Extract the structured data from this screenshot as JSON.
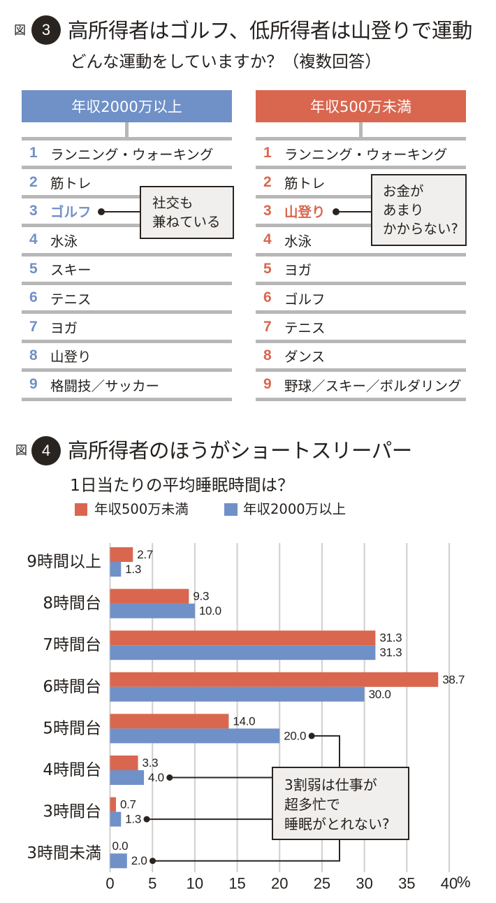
{
  "figure3": {
    "fig_label": "図",
    "fig_number": "3",
    "title": "高所得者はゴルフ、低所得者は山登りで運動",
    "subtitle": "どんな運動をしていますか？（複数回答）",
    "high_income": {
      "header": "年収2000万以上",
      "color": "#7090c8",
      "items": [
        {
          "rank": "1",
          "label": "ランニング・ウォーキング"
        },
        {
          "rank": "2",
          "label": "筋トレ"
        },
        {
          "rank": "3",
          "label": "ゴルフ",
          "highlight": true
        },
        {
          "rank": "4",
          "label": "水泳"
        },
        {
          "rank": "5",
          "label": "スキー"
        },
        {
          "rank": "6",
          "label": "テニス"
        },
        {
          "rank": "7",
          "label": "ヨガ"
        },
        {
          "rank": "8",
          "label": "山登り"
        },
        {
          "rank": "9",
          "label": "格闘技／サッカー"
        }
      ],
      "callout": [
        "社交も",
        "兼ねている"
      ]
    },
    "low_income": {
      "header": "年収500万未満",
      "color": "#d9674f",
      "items": [
        {
          "rank": "1",
          "label": "ランニング・ウォーキング"
        },
        {
          "rank": "2",
          "label": "筋トレ"
        },
        {
          "rank": "3",
          "label": "山登り",
          "highlight": true
        },
        {
          "rank": "4",
          "label": "水泳"
        },
        {
          "rank": "5",
          "label": "ヨガ"
        },
        {
          "rank": "6",
          "label": "ゴルフ"
        },
        {
          "rank": "7",
          "label": "テニス"
        },
        {
          "rank": "8",
          "label": "ダンス"
        },
        {
          "rank": "9",
          "label": "野球／スキー／ボルダリング"
        }
      ],
      "callout": [
        "お金が",
        "あまり",
        "かからない?"
      ]
    }
  },
  "figure4": {
    "fig_label": "図",
    "fig_number": "4"
  },
  "chart_data": {
    "type": "bar",
    "orientation": "horizontal",
    "title": "高所得者のほうがショートスリーパー",
    "subtitle": "1日当たりの平均睡眠時間は？",
    "categories": [
      "9時間以上",
      "8時間台",
      "7時間台",
      "6時間台",
      "5時間台",
      "4時間台",
      "3時間台",
      "3時間未満"
    ],
    "series": [
      {
        "name": "年収500万未満",
        "color": "#d9674f",
        "values": [
          2.7,
          9.3,
          31.3,
          38.7,
          14.0,
          3.3,
          0.7,
          0.0
        ]
      },
      {
        "name": "年収2000万以上",
        "color": "#7090c8",
        "values": [
          1.3,
          10.0,
          31.3,
          30.0,
          20.0,
          4.0,
          1.3,
          2.0
        ]
      }
    ],
    "xlim": [
      0,
      40
    ],
    "xticks": [
      0,
      5,
      10,
      15,
      20,
      25,
      30,
      35,
      40
    ],
    "x_unit": "%",
    "xlabel": "",
    "ylabel": "",
    "grid": "vertical",
    "legend": "top-left",
    "annotation": {
      "lines": [
        "3割弱は仕事が",
        "超多忙で",
        "睡眠がとれない?"
      ],
      "series_index": 1,
      "category_indices": [
        4,
        5,
        6,
        7
      ]
    }
  }
}
